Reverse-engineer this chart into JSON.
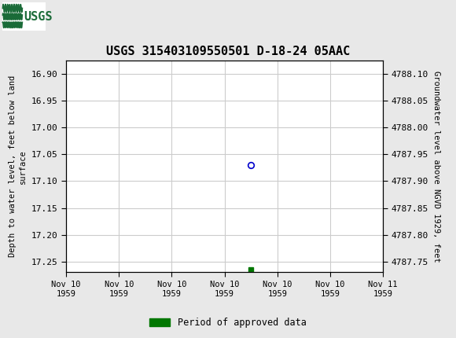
{
  "title": "USGS 315403109550501 D-18-24 05AAC",
  "ylabel_left": "Depth to water level, feet below land\nsurface",
  "ylabel_right": "Groundwater level above NGVD 1929, feet",
  "ylim_left": [
    17.27,
    16.875
  ],
  "ylim_right": [
    4787.73,
    4788.125
  ],
  "yticks_left": [
    16.9,
    16.95,
    17.0,
    17.05,
    17.1,
    17.15,
    17.2,
    17.25
  ],
  "yticks_right": [
    4788.1,
    4788.05,
    4788.0,
    4787.95,
    4787.9,
    4787.85,
    4787.8,
    4787.75
  ],
  "data_point_x": 3.5,
  "data_point_y": 17.07,
  "green_square_x": 3.5,
  "green_square_y": 17.265,
  "x_tick_labels": [
    "Nov 10\n1959",
    "Nov 10\n1959",
    "Nov 10\n1959",
    "Nov 10\n1959",
    "Nov 10\n1959",
    "Nov 10\n1959",
    "Nov 11\n1959"
  ],
  "xlim": [
    0,
    6
  ],
  "header_color": "#1a6b38",
  "header_text_color": "#ffffff",
  "background_color": "#e8e8e8",
  "plot_bg_color": "#ffffff",
  "grid_color": "#cccccc",
  "point_color": "#0000cc",
  "green_color": "#007700",
  "legend_label": "Period of approved data",
  "font_family": "DejaVu Sans Mono"
}
